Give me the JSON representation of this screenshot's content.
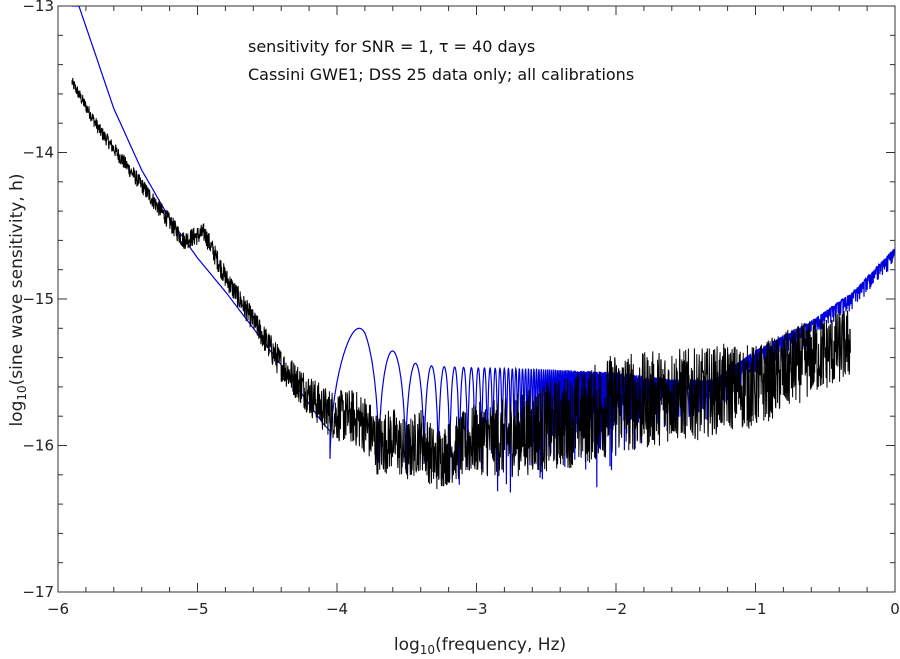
{
  "chart_data": {
    "type": "line",
    "annotations": [
      "sensitivity for SNR = 1, τ = 40 days",
      "Cassini GWE1; DSS 25 data only; all calibrations"
    ],
    "xlabel": {
      "prefix": "log",
      "subscript": "10",
      "suffix": "(frequency, Hz)"
    },
    "ylabel": {
      "prefix": "log",
      "subscript": "10",
      "suffix": "(sine wave sensitivity, h)"
    },
    "xlim": [
      -6,
      0
    ],
    "ylim": [
      -17,
      -13
    ],
    "x_ticks": [
      -6,
      -5,
      -4,
      -3,
      -2,
      -1,
      0
    ],
    "x_tick_labels": [
      "−6",
      "−5",
      "−4",
      "−3",
      "−2",
      "−1",
      "0"
    ],
    "y_ticks": [
      -17,
      -16,
      -15,
      -14,
      -13
    ],
    "y_tick_labels": [
      "−17",
      "−16",
      "−15",
      "−14",
      "−13"
    ],
    "grid": false,
    "series": [
      {
        "color": "#0000dd",
        "description_points": {
          "x": [
            -5.85,
            -5.6,
            -5.4,
            -5.2,
            -5.0,
            -4.8,
            -4.6,
            -4.4,
            -4.25,
            -4.1,
            -4.05
          ],
          "y": [
            -13.0,
            -13.7,
            -14.12,
            -14.45,
            -14.72,
            -14.95,
            -15.2,
            -15.45,
            -15.65,
            -15.85,
            -15.9
          ]
        },
        "upper_envelope": {
          "x": [
            -3.8,
            -3.5,
            -3.3,
            -3.0,
            -2.5,
            -2.0,
            -1.6,
            -1.3,
            -1.0,
            -0.6,
            -0.3,
            0.0
          ],
          "y": [
            -15.2,
            -15.43,
            -15.46,
            -15.47,
            -15.48,
            -15.5,
            -15.55,
            -15.55,
            -15.35,
            -15.15,
            -14.95,
            -14.65
          ]
        },
        "lower_envelope": {
          "x": [
            -3.5,
            -3.0,
            -2.5,
            -2.2,
            -2.0,
            -1.8,
            -1.5,
            -1.2,
            -1.0,
            -0.6,
            -0.3,
            0.0
          ],
          "y": [
            -16.3,
            -16.45,
            -16.45,
            -16.4,
            -16.3,
            -16.1,
            -15.95,
            -15.75,
            -15.6,
            -15.35,
            -15.1,
            -14.8
          ]
        }
      },
      {
        "color": "#000000",
        "mean": {
          "x": [
            -5.9,
            -5.7,
            -5.5,
            -5.3,
            -5.1,
            -4.95,
            -4.8,
            -4.7,
            -4.6,
            -4.5,
            -4.4,
            -4.3,
            -4.2,
            -4.1,
            -4.0,
            -3.9,
            -3.8,
            -3.7,
            -3.6,
            -3.5,
            -3.4,
            -3.3,
            -3.2,
            -3.0,
            -2.8,
            -2.6,
            -2.4,
            -2.2,
            -2.0,
            -1.8,
            -1.6,
            -1.4,
            -1.2,
            -1.0,
            -0.8,
            -0.6,
            -0.45,
            -0.32
          ],
          "y": [
            -13.52,
            -13.85,
            -14.1,
            -14.35,
            -14.6,
            -14.55,
            -14.85,
            -15.0,
            -15.15,
            -15.3,
            -15.45,
            -15.55,
            -15.65,
            -15.75,
            -15.8,
            -15.8,
            -15.85,
            -16.0,
            -15.95,
            -16.05,
            -15.95,
            -16.1,
            -16.05,
            -15.95,
            -15.95,
            -15.9,
            -15.85,
            -15.8,
            -15.7,
            -15.7,
            -15.65,
            -15.65,
            -15.6,
            -15.6,
            -15.5,
            -15.4,
            -15.35,
            -15.3
          ]
        },
        "noise_amplitude": {
          "x": [
            -5.9,
            -4.6,
            -4.1,
            -3.7,
            -3.2,
            -2.6,
            -2.0,
            -1.2,
            -0.32
          ],
          "y": [
            0.04,
            0.08,
            0.16,
            0.22,
            0.22,
            0.3,
            0.35,
            0.3,
            0.25
          ]
        }
      }
    ]
  }
}
